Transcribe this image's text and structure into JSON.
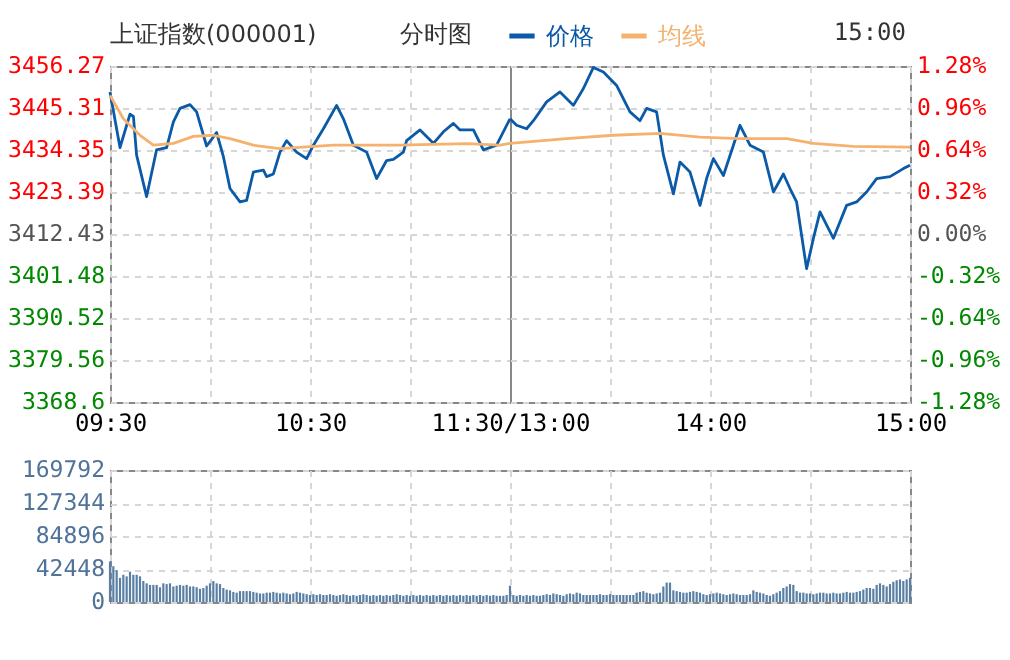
{
  "chart_data": [
    {
      "type": "line",
      "title": "上证指数(000001)",
      "subtitle": "分时图",
      "grid": true,
      "line_style": "solid",
      "series": [
        {
          "color": "#0b5aa8",
          "x": [
            9.5,
            9.533,
            9.55,
            9.6,
            9.617,
            9.633,
            9.683,
            9.733,
            9.783,
            9.817,
            9.85,
            9.9,
            9.933,
            9.983,
            10.033,
            10.067,
            10.1,
            10.15,
            10.183,
            10.217,
            10.267,
            10.283,
            10.317,
            10.35,
            10.383,
            10.433,
            10.483,
            10.517,
            10.567,
            10.633,
            10.667,
            10.717,
            10.783,
            10.833,
            10.883,
            10.917,
            10.967,
            10.983,
            11.05,
            11.117,
            11.167,
            11.217,
            11.25,
            11.317,
            11.367,
            11.433,
            11.5
          ],
          "values": [
            3449.5,
            3439.9,
            3435.0,
            3443.7,
            3443.1,
            3433.0,
            3422.2,
            3434.4,
            3435.0,
            3441.7,
            3445.2,
            3446.2,
            3444.3,
            3435.4,
            3438.9,
            3432.6,
            3424.3,
            3420.8,
            3421.2,
            3428.6,
            3429.1,
            3427.4,
            3428.1,
            3433.8,
            3436.8,
            3433.8,
            3432.1,
            3435.6,
            3439.9,
            3446.0,
            3442.5,
            3435.6,
            3433.8,
            3426.9,
            3431.6,
            3431.9,
            3433.8,
            3436.8,
            3439.6,
            3436.1,
            3439.1,
            3441.3,
            3439.6,
            3439.6,
            3434.4,
            3435.6,
            3442.5
          ]
        },
        {
          "color": "#f5b26e",
          "x": [
            9.5,
            9.567,
            9.65,
            9.717,
            9.817,
            9.917,
            10.017,
            10.1,
            10.217,
            10.35,
            10.617,
            10.95,
            11.283,
            11.45,
            11.5
          ],
          "values": [
            3448.6,
            3442.5,
            3438.2,
            3435.6,
            3436.1,
            3437.9,
            3438.2,
            3437.3,
            3435.6,
            3434.7,
            3435.6,
            3435.6,
            3436.0,
            3435.6,
            3436.1
          ]
        }
      ],
      "xlim": [
        9.5,
        11.5
      ],
      "xticks": [
        {
          "value": 9.5,
          "label": "09:30"
        },
        {
          "value": 10,
          "label": null
        },
        {
          "value": 10.5,
          "label": "10:30"
        },
        {
          "value": 11,
          "label": null
        },
        {
          "value": 11.5,
          "label": "11:30/13:00"
        }
      ],
      "ylim": [
        3368.6,
        3456.27
      ],
      "yticks": [
        3368.6,
        3379.56,
        3390.52,
        3401.48,
        3412.43,
        3423.39,
        3434.35,
        3445.31,
        3456.27
      ]
    },
    {
      "type": "line",
      "annotations": [
        "15:00"
      ],
      "legend": "top",
      "grid": true,
      "line_style": "solid",
      "tick_labels": "x",
      "series": [
        {
          "name": "价格",
          "color": "#0b5aa8",
          "x": [
            13.0,
            13.033,
            13.083,
            13.117,
            13.183,
            13.25,
            13.3,
            13.317,
            13.367,
            13.417,
            13.467,
            13.533,
            13.6,
            13.65,
            13.683,
            13.733,
            13.767,
            13.817,
            13.85,
            13.9,
            13.95,
            13.983,
            14.017,
            14.067,
            14.117,
            14.15,
            14.2,
            14.267,
            14.317,
            14.367,
            14.4,
            14.433,
            14.483,
            14.517,
            14.55,
            14.617,
            14.683,
            14.733,
            14.783,
            14.833,
            14.9,
            14.967,
            15.0
          ],
          "values": [
            3442.5,
            3440.8,
            3439.9,
            3442.0,
            3446.9,
            3449.5,
            3446.9,
            3446.0,
            3450.4,
            3455.9,
            3454.7,
            3451.2,
            3444.3,
            3442.0,
            3445.2,
            3444.3,
            3433.0,
            3422.9,
            3431.2,
            3428.6,
            3419.9,
            3426.9,
            3432.1,
            3427.7,
            3435.6,
            3440.8,
            3435.6,
            3433.8,
            3423.4,
            3428.1,
            3424.3,
            3420.8,
            3403.4,
            3411.3,
            3418.2,
            3411.3,
            3419.9,
            3420.8,
            3423.4,
            3426.9,
            3427.4,
            3429.5,
            3430.4
          ]
        },
        {
          "name": "均线",
          "color": "#f5b26e",
          "x": [
            13.0,
            13.283,
            13.517,
            13.75,
            13.95,
            14.15,
            14.383,
            14.517,
            14.717,
            15.0
          ],
          "values": [
            3436.1,
            3437.3,
            3438.2,
            3438.7,
            3437.7,
            3437.3,
            3437.3,
            3436.1,
            3435.3,
            3435.1
          ]
        }
      ],
      "xlim": [
        13,
        15
      ],
      "xticks": [
        {
          "value": 13.5,
          "label": null
        },
        {
          "value": 14,
          "label": "14:00"
        },
        {
          "value": 14.5,
          "label": null
        },
        {
          "value": 15,
          "label": "15:00"
        }
      ],
      "ylim": [
        3368.6,
        3456.27
      ],
      "yticks": [
        3368.6,
        3379.56,
        3390.52,
        3401.48,
        3412.43,
        3423.39,
        3434.35,
        3445.31,
        3456.27
      ],
      "y2lim": [
        -1.28,
        1.28
      ],
      "y2ticks": [
        {
          "value": -1.28,
          "label": "-1.28%"
        },
        {
          "value": -0.96,
          "label": "-0.96%"
        },
        {
          "value": -0.64,
          "label": "-0.64%"
        },
        {
          "value": -0.32,
          "label": "-0.32%"
        },
        {
          "value": 0,
          "label": "0.00%"
        },
        {
          "value": 0.32,
          "label": "0.32%"
        },
        {
          "value": 0.64,
          "label": "0.64%"
        },
        {
          "value": 0.96,
          "label": "0.96%"
        },
        {
          "value": 1.28,
          "label": "1.28%"
        }
      ]
    },
    {
      "type": "bar",
      "color": "#5a7fa5",
      "grid": true,
      "tick_labels": "y",
      "categories": [
        null,
        null,
        null,
        null,
        null,
        null,
        null,
        null,
        null,
        null,
        null,
        null,
        null,
        null,
        null,
        null,
        null,
        null,
        null,
        null,
        null,
        null,
        null,
        null,
        null,
        null,
        null,
        null,
        null,
        null,
        null,
        null,
        null,
        null,
        null,
        null,
        null,
        null,
        null,
        null,
        null,
        null,
        null,
        null,
        null,
        null,
        null,
        null,
        null,
        null,
        null,
        null,
        null,
        null,
        null,
        null,
        null,
        null,
        null,
        null,
        null,
        null,
        null,
        null,
        null,
        null,
        null,
        null,
        null,
        null,
        null,
        null,
        null,
        null,
        null,
        null,
        null,
        null,
        null,
        null,
        null,
        null,
        null,
        null,
        null,
        null,
        null,
        null,
        null,
        null,
        null,
        null,
        null,
        null,
        null,
        null,
        null,
        null,
        null,
        null,
        null,
        null,
        null,
        null,
        null,
        null,
        null,
        null,
        null,
        null,
        null,
        null,
        null,
        null,
        null,
        null,
        null,
        null,
        null,
        null,
        null,
        null,
        null,
        null,
        null,
        null,
        null,
        null,
        null,
        null,
        null,
        null,
        null,
        null,
        null,
        null,
        null,
        null,
        null,
        null,
        null,
        null,
        null,
        null,
        null,
        null,
        null,
        null,
        null,
        null,
        null,
        null,
        null,
        null,
        null,
        null,
        null,
        null,
        null,
        null,
        null,
        null,
        null,
        null,
        null,
        null,
        null,
        null,
        null,
        null,
        null,
        null,
        null,
        null,
        null,
        null,
        null,
        null,
        null,
        null,
        null,
        null,
        null,
        null,
        null,
        null,
        null,
        null,
        null,
        null,
        null,
        null,
        null,
        null,
        null,
        null,
        null,
        null,
        null,
        null,
        null,
        null,
        null,
        null,
        null,
        null,
        null,
        null,
        null,
        null,
        null,
        null,
        null,
        null,
        null,
        null,
        null,
        null,
        null,
        null,
        null,
        null,
        null,
        null,
        null,
        null,
        null,
        null,
        null,
        null,
        null,
        null,
        null,
        null,
        null,
        null,
        null,
        null,
        null,
        null,
        null
      ],
      "values": [
        52000,
        46000,
        41000,
        31000,
        35000,
        33000,
        39000,
        35000,
        35000,
        33000,
        27000,
        24000,
        22000,
        22000,
        22000,
        19000,
        24000,
        23000,
        24000,
        20000,
        21000,
        22000,
        21000,
        22000,
        20000,
        20000,
        19000,
        17000,
        18000,
        21000,
        24000,
        27000,
        24000,
        23000,
        18000,
        16000,
        15000,
        13000,
        12000,
        14000,
        14000,
        14000,
        14000,
        13000,
        12000,
        11000,
        11000,
        12000,
        12000,
        13000,
        12000,
        11000,
        12000,
        11000,
        10000,
        11000,
        13000,
        12000,
        11000,
        10000,
        9000,
        10000,
        9000,
        10000,
        9000,
        9000,
        10000,
        9000,
        8000,
        9000,
        10000,
        9000,
        8000,
        9000,
        8000,
        9000,
        10000,
        9000,
        8000,
        9000,
        8000,
        9000,
        8000,
        9000,
        8000,
        9000,
        10000,
        9000,
        8000,
        9000,
        8000,
        9000,
        8000,
        9000,
        8000,
        9000,
        8000,
        9000,
        8000,
        9000,
        8000,
        9000,
        8000,
        9000,
        8000,
        9000,
        8000,
        9000,
        8000,
        9000,
        8000,
        9000,
        8000,
        9000,
        8000,
        9000,
        8000,
        8000,
        8000,
        9000,
        21000,
        9000,
        8000,
        9000,
        8000,
        9000,
        8000,
        9000,
        8000,
        8000,
        9000,
        10000,
        9000,
        11000,
        10000,
        9000,
        8000,
        10000,
        11000,
        10000,
        12000,
        11000,
        9000,
        9000,
        9000,
        9000,
        9000,
        10000,
        9000,
        9000,
        10000,
        9000,
        9000,
        9000,
        9000,
        9000,
        9000,
        9000,
        12000,
        13000,
        14000,
        12000,
        11000,
        10000,
        11000,
        12000,
        20000,
        25000,
        25000,
        15000,
        14000,
        13000,
        12000,
        12000,
        13000,
        14000,
        13000,
        12000,
        10000,
        9000,
        10000,
        11000,
        12000,
        11000,
        10000,
        9000,
        10000,
        11000,
        10000,
        9000,
        9000,
        9000,
        10000,
        15000,
        13000,
        12000,
        11000,
        9000,
        8000,
        10000,
        12000,
        14000,
        18000,
        20000,
        23000,
        22000,
        14000,
        12000,
        12000,
        11000,
        11000,
        10000,
        11000,
        12000,
        12000,
        11000,
        11000,
        12000,
        11000,
        11000,
        12000,
        13000,
        12000,
        12000,
        13000,
        14000,
        16000,
        18000,
        18000,
        17000,
        22000,
        24000,
        22000,
        20000,
        23000,
        26000,
        28000,
        29000,
        27000,
        29000,
        31000
      ],
      "ylim": [
        0,
        169792
      ],
      "yticks": [
        0,
        42448,
        84896,
        127344,
        169792
      ]
    }
  ]
}
